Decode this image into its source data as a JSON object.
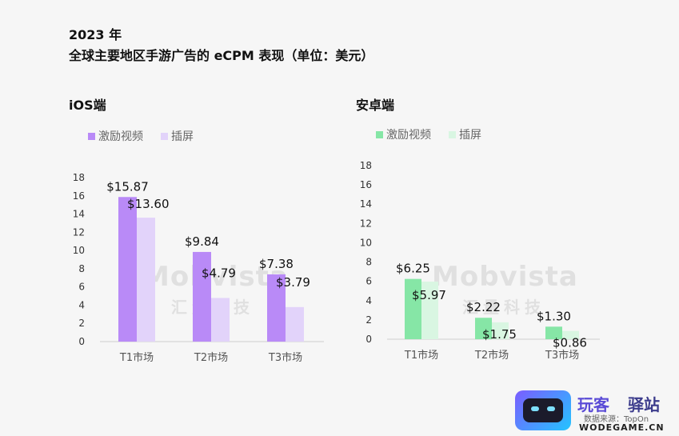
{
  "header": {
    "year": "2023 年",
    "title": "全球主要地区手游广告的 eCPM 表现（单位：美元）"
  },
  "watermark": {
    "brand": "Mobvista",
    "brand_cn": "汇量科技"
  },
  "footer": {
    "logo_text_a": "玩客",
    "logo_text_b": "驿站",
    "source": "数据来源：TopOn",
    "domain": "WODEGAME.CN"
  },
  "chart_data": [
    {
      "type": "bar",
      "panel_title": "iOS端",
      "categories": [
        "T1市场",
        "T2市场",
        "T3市场"
      ],
      "series": [
        {
          "name": "激励视频",
          "values": [
            15.87,
            9.84,
            7.38
          ],
          "labels": [
            "$15.87",
            "$9.84",
            "$7.38"
          ],
          "color": "#b98af7"
        },
        {
          "name": "插屏",
          "values": [
            13.6,
            4.79,
            3.79
          ],
          "labels": [
            "$13.60",
            "$4.79",
            "$3.79"
          ],
          "color": "#e2d3fa"
        }
      ],
      "ylim": [
        0,
        18
      ],
      "yticks": [
        "0",
        "2",
        "4",
        "6",
        "8",
        "10",
        "12",
        "14",
        "16",
        "18"
      ],
      "legend": "top-left",
      "grid": false
    },
    {
      "type": "bar",
      "panel_title": "安卓端",
      "categories": [
        "T1市场",
        "T2市场",
        "T3市场"
      ],
      "series": [
        {
          "name": "激励视频",
          "values": [
            6.25,
            2.22,
            1.3
          ],
          "labels": [
            "$6.25",
            "$2.22",
            "$1.30"
          ],
          "color": "#86e6a6"
        },
        {
          "name": "插屏",
          "values": [
            5.97,
            1.75,
            0.86
          ],
          "labels": [
            "$5.97",
            "$1.75",
            "$0.86"
          ],
          "color": "#d9f6e2"
        }
      ],
      "ylim": [
        0,
        18
      ],
      "yticks": [
        "0",
        "2",
        "4",
        "6",
        "8",
        "10",
        "12",
        "14",
        "16",
        "18"
      ],
      "legend": "top-left",
      "grid": false
    }
  ]
}
